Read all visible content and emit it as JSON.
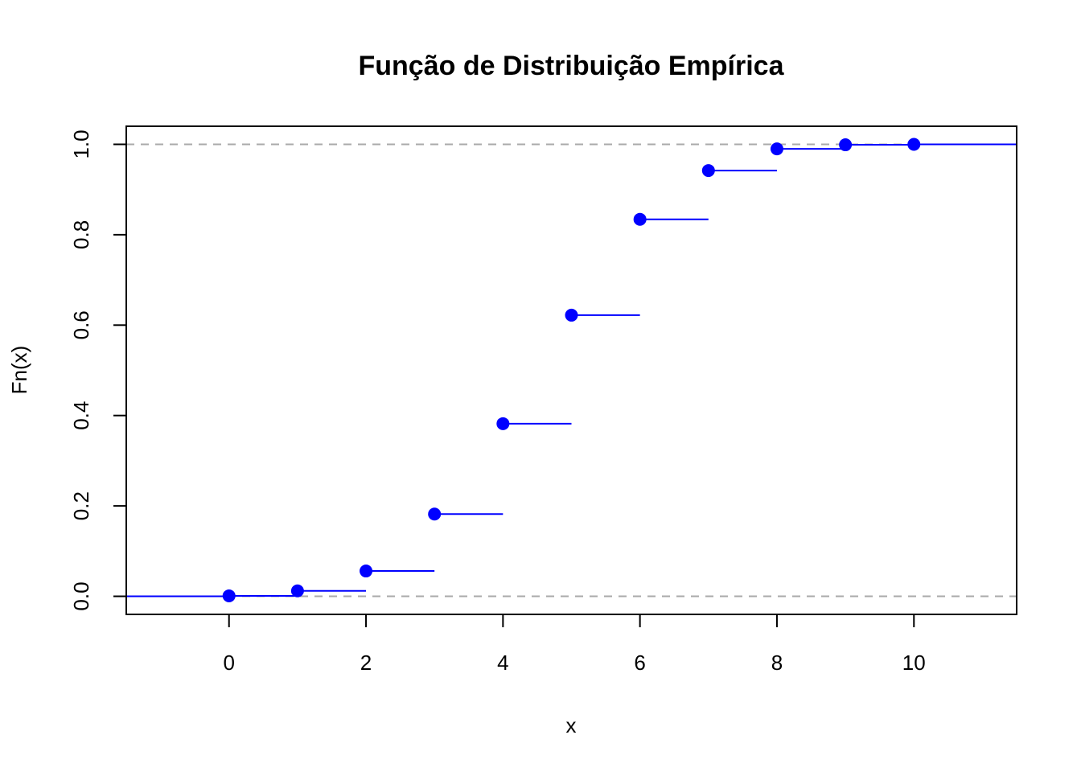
{
  "chart_data": {
    "type": "step",
    "title": "Função de Distribuição Empírica",
    "xlabel": "x",
    "ylabel": "Fn(x)",
    "xlim": [
      -1.5,
      11.5
    ],
    "ylim": [
      -0.04,
      1.04
    ],
    "x_ticks": [
      0,
      2,
      4,
      6,
      8,
      10
    ],
    "x_tick_labels": [
      "0",
      "2",
      "4",
      "6",
      "8",
      "10"
    ],
    "y_ticks": [
      0.0,
      0.2,
      0.4,
      0.6,
      0.8,
      1.0
    ],
    "y_tick_labels": [
      "0.0",
      "0.2",
      "0.4",
      "0.6",
      "0.8",
      "1.0"
    ],
    "reference_lines": [
      0,
      1
    ],
    "reference_line_color": "#aaaaaa",
    "series_color": "#0000ff",
    "points": [
      {
        "x": 0,
        "y": 0.001
      },
      {
        "x": 1,
        "y": 0.012
      },
      {
        "x": 2,
        "y": 0.056
      },
      {
        "x": 3,
        "y": 0.182
      },
      {
        "x": 4,
        "y": 0.382
      },
      {
        "x": 5,
        "y": 0.622
      },
      {
        "x": 6,
        "y": 0.834
      },
      {
        "x": 7,
        "y": 0.942
      },
      {
        "x": 8,
        "y": 0.99
      },
      {
        "x": 9,
        "y": 0.999
      },
      {
        "x": 10,
        "y": 1.0
      }
    ],
    "grid": false,
    "legend": "none"
  }
}
